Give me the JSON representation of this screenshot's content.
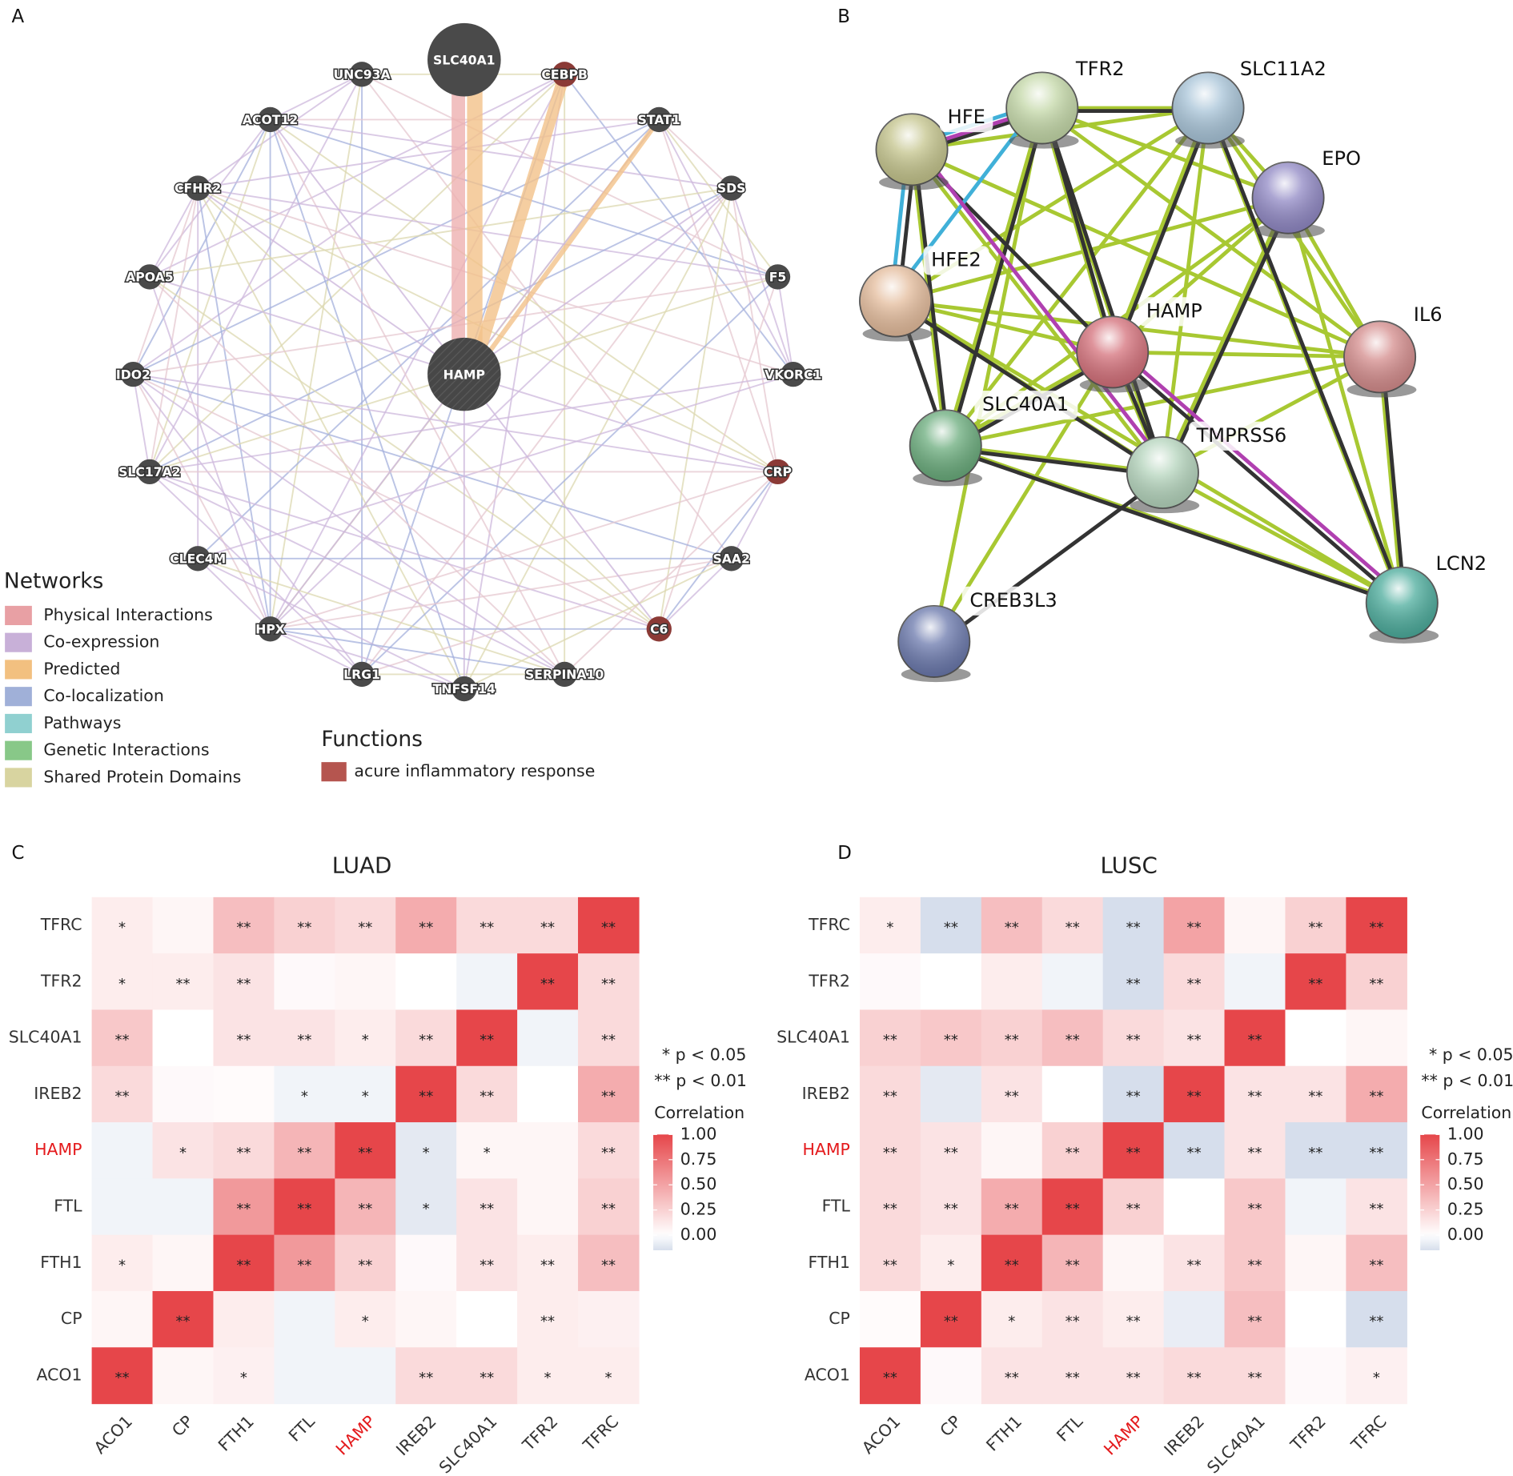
{
  "panels": [
    "A",
    "B",
    "C",
    "D"
  ],
  "network_a": {
    "nodes": [
      {
        "label": "SLC40A1",
        "color": "#4a4a4a"
      },
      {
        "label": "HAMP",
        "color": "#4a4a4a"
      },
      {
        "label": "UNC93A",
        "color": "#4a4a4a"
      },
      {
        "label": "CEBPB",
        "color": "#8b3a36"
      },
      {
        "label": "ACOT12",
        "color": "#4a4a4a"
      },
      {
        "label": "STAT1",
        "color": "#4a4a4a"
      },
      {
        "label": "CFHR2",
        "color": "#4a4a4a"
      },
      {
        "label": "SDS",
        "color": "#4a4a4a"
      },
      {
        "label": "APOA5",
        "color": "#4a4a4a"
      },
      {
        "label": "F5",
        "color": "#4a4a4a"
      },
      {
        "label": "IDO2",
        "color": "#4a4a4a"
      },
      {
        "label": "VKORC1",
        "color": "#4a4a4a"
      },
      {
        "label": "SLC17A2",
        "color": "#4a4a4a"
      },
      {
        "label": "CRP",
        "color": "#8b3a36"
      },
      {
        "label": "CLEC4M",
        "color": "#4a4a4a"
      },
      {
        "label": "SAA2",
        "color": "#4a4a4a"
      },
      {
        "label": "HPX",
        "color": "#4a4a4a"
      },
      {
        "label": "C6",
        "color": "#8b3a36"
      },
      {
        "label": "LRG1",
        "color": "#4a4a4a"
      },
      {
        "label": "SERPINA10",
        "color": "#4a4a4a"
      },
      {
        "label": "TNFSF14",
        "color": "#4a4a4a"
      }
    ],
    "legend_title": "Networks",
    "legend": [
      {
        "label": "Physical Interactions",
        "color": "#e8a0a4"
      },
      {
        "label": "Co-expression",
        "color": "#c8b0d8"
      },
      {
        "label": "Predicted",
        "color": "#f2c080"
      },
      {
        "label": "Co-localization",
        "color": "#a0b0d8"
      },
      {
        "label": "Pathways",
        "color": "#90d0d0"
      },
      {
        "label": "Genetic Interactions",
        "color": "#88c888"
      },
      {
        "label": "Shared Protein Domains",
        "color": "#d8d4a0"
      }
    ],
    "functions_title": "Functions",
    "functions": [
      {
        "label": "acure inflammatory response",
        "color": "#b5554f"
      }
    ]
  },
  "network_b": {
    "nodes": [
      {
        "label": "TFR2",
        "color": "#c4d8a8"
      },
      {
        "label": "SLC11A2",
        "color": "#a8c4d8"
      },
      {
        "label": "HFE",
        "color": "#c4c48c"
      },
      {
        "label": "EPO",
        "color": "#9088c4"
      },
      {
        "label": "HFE2",
        "color": "#e4bc9c"
      },
      {
        "label": "HAMP",
        "color": "#d4707a"
      },
      {
        "label": "IL6",
        "color": "#d48c8c"
      },
      {
        "label": "SLC40A1",
        "color": "#6aac7c"
      },
      {
        "label": "TMPRSS6",
        "color": "#b4d4bc"
      },
      {
        "label": "LCN2",
        "color": "#4cac9c"
      },
      {
        "label": "CREB3L3",
        "color": "#6a78ac"
      }
    ]
  },
  "chart_data": [
    {
      "type": "heatmap",
      "title": "LUAD",
      "x": [
        "ACO1",
        "CP",
        "FTH1",
        "FTL",
        "HAMP",
        "IREB2",
        "SLC40A1",
        "TFR2",
        "TFRC"
      ],
      "y": [
        "TFRC",
        "TFR2",
        "SLC40A1",
        "IREB2",
        "HAMP",
        "FTL",
        "FTH1",
        "CP",
        "ACO1"
      ],
      "values": [
        [
          0.1,
          0.05,
          0.35,
          0.25,
          0.2,
          0.45,
          0.2,
          0.2,
          1
        ],
        [
          0.1,
          0.1,
          0.15,
          0.03,
          0.05,
          0.0,
          -0.05,
          1,
          0.2
        ],
        [
          0.3,
          0.0,
          0.15,
          0.15,
          0.1,
          0.2,
          1,
          -0.05,
          0.2
        ],
        [
          0.2,
          0.03,
          0.02,
          -0.05,
          -0.05,
          1,
          0.2,
          0.0,
          0.45
        ],
        [
          -0.05,
          0.15,
          0.2,
          0.4,
          1,
          -0.1,
          0.05,
          0.05,
          0.2
        ],
        [
          -0.05,
          -0.05,
          0.55,
          1,
          0.4,
          -0.1,
          0.15,
          0.05,
          0.25
        ],
        [
          0.1,
          0.05,
          1,
          0.55,
          0.25,
          0.03,
          0.15,
          0.1,
          0.35
        ],
        [
          0.05,
          1,
          0.1,
          -0.05,
          0.1,
          0.05,
          0.0,
          0.1,
          0.08
        ],
        [
          1,
          0.05,
          0.08,
          -0.05,
          -0.05,
          0.2,
          0.2,
          0.1,
          0.1
        ]
      ],
      "annotations": [
        [
          "*",
          null,
          "**",
          "**",
          "**",
          "**",
          "**",
          "**",
          "**"
        ],
        [
          "*",
          "**",
          "**",
          null,
          null,
          null,
          null,
          "**",
          "**"
        ],
        [
          "**",
          null,
          "**",
          "**",
          "*",
          "**",
          "**",
          null,
          "**"
        ],
        [
          "**",
          null,
          null,
          "*",
          "*",
          "**",
          "**",
          null,
          "**"
        ],
        [
          null,
          "*",
          "**",
          "**",
          "**",
          "*",
          "*",
          null,
          "**"
        ],
        [
          null,
          null,
          "**",
          "**",
          "**",
          "*",
          "**",
          null,
          "**"
        ],
        [
          "*",
          null,
          "**",
          "**",
          "**",
          null,
          "**",
          "**",
          "**"
        ],
        [
          null,
          "**",
          null,
          null,
          "*",
          null,
          null,
          "**",
          null
        ],
        [
          "**",
          null,
          "*",
          null,
          null,
          "**",
          "**",
          "*",
          "*"
        ]
      ],
      "notes": [
        "* p < 0.05",
        "** p < 0.01"
      ],
      "colorbar_title": "Correlation",
      "zlim": [
        -0.15,
        1
      ],
      "zticks": [
        {
          "value": 1,
          "label": "1.00"
        },
        {
          "value": 0.75,
          "label": "0.75"
        },
        {
          "value": 0.5,
          "label": "0.50"
        },
        {
          "value": 0.25,
          "label": "0.25"
        },
        {
          "value": 0,
          "label": "0.00"
        }
      ],
      "colors": {
        "low": "#d6deec",
        "mid": "#ffffff",
        "high": "#e6464a"
      },
      "highlight": "HAMP",
      "highlight_color": "#e41a1c"
    },
    {
      "type": "heatmap",
      "title": "LUSC",
      "x": [
        "ACO1",
        "CP",
        "FTH1",
        "FTL",
        "HAMP",
        "IREB2",
        "SLC40A1",
        "TFR2",
        "TFRC"
      ],
      "y": [
        "TFRC",
        "TFR2",
        "SLC40A1",
        "IREB2",
        "HAMP",
        "FTL",
        "FTH1",
        "CP",
        "ACO1"
      ],
      "values": [
        [
          0.1,
          -0.15,
          0.35,
          0.2,
          -0.15,
          0.5,
          0.05,
          0.25,
          1
        ],
        [
          0.03,
          0.0,
          0.1,
          -0.05,
          -0.15,
          0.2,
          -0.05,
          1,
          0.25
        ],
        [
          0.25,
          0.3,
          0.25,
          0.35,
          0.2,
          0.15,
          1,
          0.0,
          0.05
        ],
        [
          0.2,
          -0.1,
          0.15,
          0.0,
          -0.15,
          1,
          0.15,
          0.15,
          0.45
        ],
        [
          0.2,
          0.15,
          0.05,
          0.25,
          1,
          -0.15,
          0.15,
          -0.15,
          -0.15
        ],
        [
          0.2,
          0.15,
          0.45,
          1,
          0.25,
          0.0,
          0.3,
          -0.05,
          0.15
        ],
        [
          0.2,
          0.1,
          1,
          0.4,
          0.05,
          0.15,
          0.3,
          0.05,
          0.35
        ],
        [
          0.02,
          1,
          0.1,
          0.15,
          0.1,
          -0.08,
          0.35,
          0.0,
          -0.2
        ],
        [
          1,
          0.03,
          0.15,
          0.15,
          0.15,
          0.2,
          0.2,
          0.03,
          0.08
        ]
      ],
      "annotations": [
        [
          "*",
          "**",
          "**",
          "**",
          "**",
          "**",
          null,
          "**",
          "**"
        ],
        [
          null,
          null,
          null,
          null,
          "**",
          "**",
          null,
          "**",
          "**"
        ],
        [
          "**",
          "**",
          "**",
          "**",
          "**",
          "**",
          "**",
          null,
          null
        ],
        [
          "**",
          null,
          "**",
          null,
          "**",
          "**",
          "**",
          "**",
          "**"
        ],
        [
          "**",
          "**",
          null,
          "**",
          "**",
          "**",
          "**",
          "**",
          "**"
        ],
        [
          "**",
          "**",
          "**",
          "**",
          "**",
          null,
          "**",
          null,
          "**"
        ],
        [
          "**",
          "*",
          "**",
          "**",
          null,
          "**",
          "**",
          null,
          "**"
        ],
        [
          null,
          "**",
          "*",
          "**",
          "**",
          null,
          "**",
          null,
          "**"
        ],
        [
          "**",
          null,
          "**",
          "**",
          "**",
          "**",
          "**",
          null,
          "*"
        ]
      ],
      "notes": [
        "* p < 0.05",
        "** p < 0.01"
      ],
      "colorbar_title": "Correlation",
      "zlim": [
        -0.15,
        1
      ],
      "zticks": [
        {
          "value": 1,
          "label": "1.00"
        },
        {
          "value": 0.75,
          "label": "0.75"
        },
        {
          "value": 0.5,
          "label": "0.50"
        },
        {
          "value": 0.25,
          "label": "0.25"
        },
        {
          "value": 0,
          "label": "0.00"
        }
      ],
      "colors": {
        "low": "#d6deec",
        "mid": "#ffffff",
        "high": "#e6464a"
      },
      "highlight": "HAMP",
      "highlight_color": "#e41a1c"
    }
  ]
}
